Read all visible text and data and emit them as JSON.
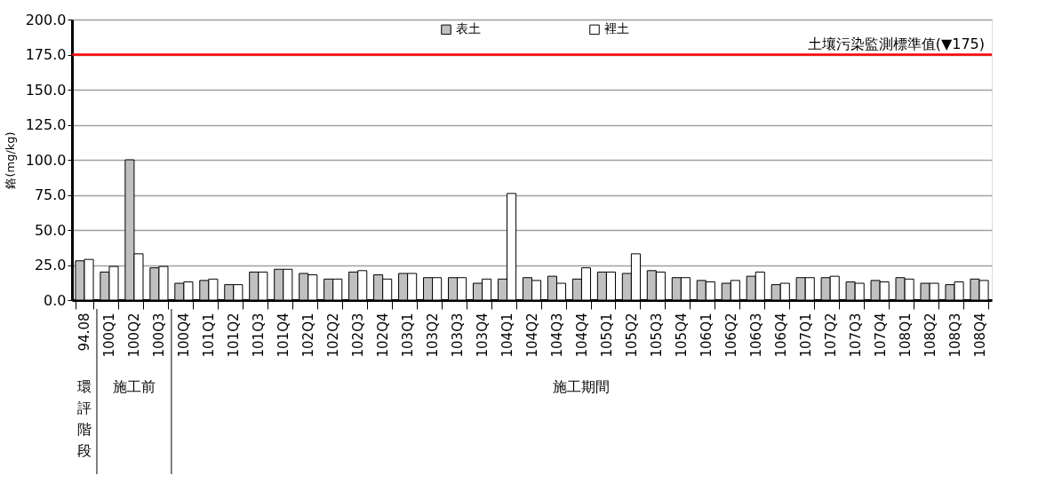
{
  "chart_data": {
    "type": "bar",
    "ylabel": "鉻(mg/kg)",
    "categories": [
      "94.08",
      "100Q1",
      "100Q2",
      "100Q3",
      "100Q4",
      "101Q1",
      "101Q2",
      "101Q3",
      "101Q4",
      "102Q1",
      "102Q2",
      "102Q3",
      "102Q4",
      "103Q1",
      "103Q2",
      "103Q3",
      "103Q4",
      "104Q1",
      "104Q2",
      "104Q3",
      "104Q4",
      "105Q1",
      "105Q2",
      "105Q3",
      "105Q4",
      "106Q1",
      "106Q2",
      "106Q3",
      "106Q4",
      "107Q1",
      "107Q2",
      "107Q3",
      "107Q4",
      "108Q1",
      "108Q2",
      "108Q3",
      "108Q4"
    ],
    "series": [
      {
        "name": "表土",
        "color": "#c0c0c0",
        "values": [
          28,
          20,
          100,
          23,
          12,
          14,
          11,
          20,
          22,
          19,
          15,
          20,
          18,
          19,
          16,
          16,
          12,
          15,
          16,
          17,
          15,
          20,
          19,
          21,
          16,
          14,
          12,
          17,
          11,
          16,
          16,
          13,
          14,
          16,
          12,
          11,
          15
        ]
      },
      {
        "name": "裡土",
        "color": "#ffffff",
        "values": [
          29,
          24,
          33,
          24,
          13,
          15,
          11,
          20,
          22,
          18,
          15,
          21,
          15,
          19,
          16,
          16,
          15,
          76,
          14,
          12,
          23,
          20,
          33,
          20,
          16,
          13,
          14,
          20,
          12,
          16,
          17,
          12,
          13,
          15,
          12,
          13,
          14
        ]
      }
    ],
    "ylim": [
      0,
      200
    ],
    "yticks": [
      {
        "value": 0,
        "label": "0.0"
      },
      {
        "value": 25,
        "label": "25.0"
      },
      {
        "value": 50,
        "label": "50.0"
      },
      {
        "value": 75,
        "label": "75.0"
      },
      {
        "value": 100,
        "label": "100.0"
      },
      {
        "value": 125,
        "label": "125.0"
      },
      {
        "value": 150,
        "label": "150.0"
      },
      {
        "value": 175,
        "label": "175.0"
      },
      {
        "value": 200,
        "label": "200.0"
      }
    ],
    "grid": "y",
    "legend": "top right",
    "ref_lines": [
      {
        "axis": "y",
        "value": 175,
        "label": "土壤污染監測標準值(▼175)",
        "color": "#ff0000"
      }
    ],
    "annotations": [
      "環評階段",
      "施工前",
      "施工期間"
    ]
  }
}
